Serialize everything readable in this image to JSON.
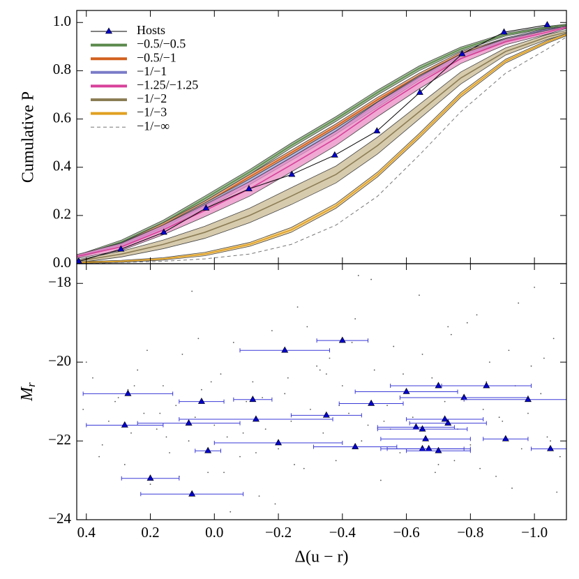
{
  "chart_data": [
    {
      "type": "band",
      "ylabel": "Cumulative P",
      "xlim": [
        0.43,
        -1.1
      ],
      "ylim": [
        0,
        1.05
      ],
      "xticks": [
        0.4,
        0.2,
        0.0,
        -0.2,
        -0.4,
        -0.6,
        -0.8,
        -1.0
      ],
      "yticks": [
        {
          "value": 0,
          "label": "0.0"
        },
        {
          "value": 0.2,
          "label": "0.2"
        },
        {
          "value": 0.4,
          "label": "0.4"
        },
        {
          "value": 0.6,
          "label": "0.6"
        },
        {
          "value": 0.8,
          "label": "0.8"
        },
        {
          "value": 1.0,
          "label": "1.0"
        }
      ],
      "legend": "upper left",
      "hosts": {
        "name": "Hosts",
        "color": "#0000cc",
        "x": [
          0.424,
          0.292,
          0.158,
          0.026,
          -0.108,
          -0.242,
          -0.376,
          -0.508,
          -0.642,
          -0.774,
          -0.905,
          -1.04
        ],
        "values": [
          0.01,
          0.06,
          0.13,
          0.23,
          0.31,
          0.37,
          0.45,
          0.55,
          0.71,
          0.87,
          0.96,
          0.99
        ]
      },
      "x": [
        0.43,
        0.29,
        0.16,
        0.03,
        -0.11,
        -0.24,
        -0.38,
        -0.51,
        -0.64,
        -0.77,
        -0.91,
        -1.04,
        -1.1
      ],
      "series": [
        {
          "name": "−0.5/−0.5",
          "color": "#5b8a4c",
          "fill": "#86a878",
          "dashed": false,
          "values": [
            0.03,
            0.09,
            0.17,
            0.27,
            0.38,
            0.49,
            0.6,
            0.71,
            0.81,
            0.89,
            0.95,
            0.98,
            0.99
          ],
          "err": [
            0.005,
            0.008,
            0.01,
            0.01,
            0.01,
            0.01,
            0.01,
            0.01,
            0.01,
            0.008,
            0.006,
            0.004,
            0.003
          ]
        },
        {
          "name": "−0.5/−1",
          "color": "#d2601e",
          "fill": "#e49060",
          "dashed": false,
          "values": [
            0.03,
            0.08,
            0.16,
            0.25,
            0.36,
            0.46,
            0.57,
            0.68,
            0.78,
            0.87,
            0.93,
            0.97,
            0.98
          ],
          "err": [
            0.005,
            0.008,
            0.01,
            0.01,
            0.01,
            0.01,
            0.01,
            0.01,
            0.01,
            0.008,
            0.006,
            0.004,
            0.003
          ]
        },
        {
          "name": "−1/−1",
          "color": "#7b7bc8",
          "fill": "#a6a6dc",
          "dashed": false,
          "values": [
            0.03,
            0.08,
            0.15,
            0.24,
            0.34,
            0.44,
            0.55,
            0.66,
            0.77,
            0.86,
            0.93,
            0.97,
            0.98
          ],
          "err": [
            0.005,
            0.008,
            0.01,
            0.012,
            0.012,
            0.012,
            0.012,
            0.012,
            0.01,
            0.008,
            0.006,
            0.004,
            0.003
          ]
        },
        {
          "name": "−1.25/−1.25",
          "color": "#d8409a",
          "fill": "#e98cc4",
          "dashed": false,
          "values": [
            0.03,
            0.07,
            0.14,
            0.22,
            0.31,
            0.41,
            0.52,
            0.64,
            0.75,
            0.85,
            0.92,
            0.96,
            0.98
          ],
          "err": [
            0.008,
            0.015,
            0.02,
            0.025,
            0.03,
            0.03,
            0.03,
            0.03,
            0.025,
            0.02,
            0.012,
            0.008,
            0.005
          ]
        },
        {
          "name": "−1/−2",
          "color": "#8b7d55",
          "fill": "#c9b992",
          "dashed": false,
          "values": [
            0.01,
            0.04,
            0.08,
            0.13,
            0.2,
            0.28,
            0.37,
            0.49,
            0.63,
            0.77,
            0.88,
            0.94,
            0.96
          ],
          "err": [
            0.006,
            0.012,
            0.018,
            0.025,
            0.03,
            0.035,
            0.035,
            0.035,
            0.03,
            0.025,
            0.015,
            0.01,
            0.008
          ]
        },
        {
          "name": "−1/−3",
          "color": "#e0a020",
          "fill": "#eec26a",
          "dashed": false,
          "values": [
            0.005,
            0.01,
            0.02,
            0.04,
            0.08,
            0.14,
            0.24,
            0.37,
            0.53,
            0.7,
            0.84,
            0.92,
            0.95
          ],
          "err": [
            0.003,
            0.004,
            0.005,
            0.007,
            0.008,
            0.01,
            0.01,
            0.01,
            0.01,
            0.01,
            0.008,
            0.006,
            0.005
          ]
        },
        {
          "name": "−1/−∞",
          "color": "#777777",
          "fill": "none",
          "dashed": true,
          "values": [
            0.0,
            0.005,
            0.01,
            0.02,
            0.04,
            0.08,
            0.16,
            0.28,
            0.45,
            0.63,
            0.79,
            0.89,
            0.94
          ],
          "err": [
            0,
            0,
            0,
            0,
            0,
            0,
            0,
            0,
            0,
            0,
            0,
            0,
            0
          ]
        }
      ]
    },
    {
      "type": "scatter",
      "xlabel": "Δ(u − r)",
      "ylabel": "M",
      "ylabel_sub": "r",
      "xlim": [
        0.43,
        -1.1
      ],
      "ylim": [
        -24,
        -17.5
      ],
      "xticks": [
        {
          "value": 0.4,
          "label": "0.4"
        },
        {
          "value": 0.2,
          "label": "0.2"
        },
        {
          "value": 0,
          "label": "0.0"
        },
        {
          "value": -0.2,
          "label": "−0.2"
        },
        {
          "value": -0.4,
          "label": "−0.4"
        },
        {
          "value": -0.6,
          "label": "−0.6"
        },
        {
          "value": -0.8,
          "label": "−0.8"
        },
        {
          "value": -1.0,
          "label": "−1.0"
        }
      ],
      "yticks": [
        {
          "value": -18,
          "label": "−18"
        },
        {
          "value": -20,
          "label": "−20"
        },
        {
          "value": -22,
          "label": "−22"
        },
        {
          "value": -24,
          "label": "−24"
        }
      ],
      "background": {
        "color": "#555555",
        "x": [
          0.41,
          0.38,
          0.35,
          0.33,
          0.3,
          0.28,
          0.26,
          0.24,
          0.22,
          0.2,
          0.18,
          0.16,
          0.14,
          0.12,
          0.1,
          0.08,
          0.06,
          0.04,
          0.02,
          0.0,
          -0.02,
          -0.04,
          -0.06,
          -0.08,
          -0.1,
          -0.12,
          -0.14,
          -0.16,
          -0.18,
          -0.2,
          -0.22,
          -0.24,
          -0.26,
          -0.28,
          -0.3,
          -0.32,
          -0.34,
          -0.36,
          -0.38,
          -0.4,
          -0.42,
          -0.44,
          -0.46,
          -0.48,
          -0.5,
          -0.52,
          -0.54,
          -0.56,
          -0.58,
          -0.6,
          -0.62,
          -0.64,
          -0.66,
          -0.68,
          -0.7,
          -0.72,
          -0.74,
          -0.76,
          -0.78,
          -0.8,
          -0.82,
          -0.84,
          -0.86,
          -0.88,
          -0.9,
          -0.92,
          -0.94,
          -0.96,
          -0.98,
          -1.0,
          -1.02,
          -1.04,
          -1.06,
          -1.08,
          0.4,
          0.31,
          0.21,
          0.11,
          0.01,
          -0.09,
          -0.19,
          -0.29,
          -0.39,
          -0.49,
          -0.59,
          -0.69,
          -0.79,
          -0.89,
          -0.99,
          -1.07,
          0.36,
          0.25,
          0.15,
          0.05,
          -0.05,
          -0.15,
          -0.25,
          -0.35,
          -0.45,
          -0.55,
          -0.65,
          -0.75,
          -0.85,
          -0.95,
          -1.05,
          0.27,
          0.07,
          -0.13,
          -0.33,
          -0.53,
          -0.73,
          -0.93,
          0.17,
          -0.03,
          -0.23,
          -0.43,
          -0.63,
          -0.83,
          -1.03
        ],
        "y": [
          -21.2,
          -20.4,
          -22.1,
          -21.5,
          -20.9,
          -22.6,
          -21.8,
          -20.2,
          -21.3,
          -23.1,
          -21.7,
          -20.6,
          -22.3,
          -21.1,
          -19.8,
          -22.0,
          -21.4,
          -20.7,
          -22.8,
          -21.6,
          -20.3,
          -21.9,
          -19.5,
          -22.4,
          -21.0,
          -20.5,
          -23.4,
          -21.7,
          -19.2,
          -22.2,
          -20.8,
          -21.5,
          -18.6,
          -22.7,
          -21.2,
          -20.1,
          -21.8,
          -19.9,
          -22.5,
          -20.6,
          -21.3,
          -18.9,
          -22.0,
          -21.6,
          -20.2,
          -23.0,
          -21.1,
          -19.6,
          -22.3,
          -20.7,
          -21.4,
          -18.3,
          -21.9,
          -20.4,
          -22.6,
          -21.0,
          -19.3,
          -21.7,
          -20.9,
          -22.1,
          -18.8,
          -21.2,
          -20.0,
          -22.9,
          -21.5,
          -19.7,
          -20.6,
          -22.2,
          -21.3,
          -18.1,
          -20.8,
          -21.9,
          -19.4,
          -22.4,
          -20.0,
          -21.0,
          -19.7,
          -22.9,
          -20.5,
          -21.8,
          -23.6,
          -19.1,
          -21.1,
          -17.9,
          -20.3,
          -22.8,
          -19.0,
          -21.4,
          -20.1,
          -23.3,
          -22.4,
          -20.6,
          -21.9,
          -19.4,
          -23.8,
          -20.9,
          -22.6,
          -20.3,
          -17.8,
          -21.7,
          -19.8,
          -22.5,
          -20.5,
          -18.5,
          -22.0,
          -20.7,
          -18.2,
          -22.3,
          -20.2,
          -21.5,
          -19.1,
          -23.2,
          -21.3,
          -22.8,
          -20.4,
          -19.5,
          -21.6,
          -22.7,
          -19.9
        ]
      },
      "hosts": {
        "name": "Hosts",
        "color": "#0000cc",
        "err_color": "#3a3ad8",
        "x": [
          -0.4,
          -0.22,
          0.27,
          0.04,
          -0.12,
          -0.49,
          -0.6,
          -0.7,
          -0.85,
          -0.78,
          -0.98,
          0.28,
          0.08,
          -0.13,
          -0.35,
          -0.63,
          -0.72,
          -0.73,
          -0.65,
          -0.66,
          -0.91,
          -0.2,
          -0.44,
          -0.65,
          -0.67,
          -0.7,
          0.02,
          0.2,
          0.07,
          -1.05
        ],
        "values": [
          -19.45,
          -19.7,
          -20.8,
          -21.0,
          -20.95,
          -21.05,
          -20.75,
          -20.6,
          -20.6,
          -20.9,
          -20.95,
          -21.6,
          -21.55,
          -21.45,
          -21.35,
          -21.65,
          -21.45,
          -21.55,
          -21.7,
          -21.95,
          -21.95,
          -22.05,
          -22.15,
          -22.2,
          -22.2,
          -22.25,
          -22.25,
          -22.95,
          -23.35,
          -22.2
        ],
        "xerr": [
          0.08,
          0.14,
          0.14,
          0.07,
          0.06,
          0.1,
          0.16,
          0.15,
          0.14,
          0.2,
          0.2,
          0.12,
          0.16,
          0.24,
          0.11,
          0.12,
          0.12,
          0.12,
          0.14,
          0.14,
          0.07,
          0.2,
          0.13,
          0.13,
          0.13,
          0.1,
          0.04,
          0.09,
          0.16,
          0.06
        ]
      }
    }
  ]
}
